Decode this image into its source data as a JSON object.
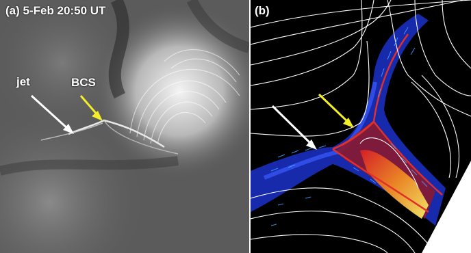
{
  "panel_a": {
    "title": "(a) 5-Feb 20:50 UT",
    "jet_label": "jet",
    "bcs_label": "BCS"
  },
  "panel_b": {
    "title": "(b)"
  },
  "colors": {
    "jet_arrow": "#ffffff",
    "bcs_arrow": "#f2ee2a",
    "field_lines": "#ffffff",
    "velocity_vectors": "#4aa3ff"
  }
}
